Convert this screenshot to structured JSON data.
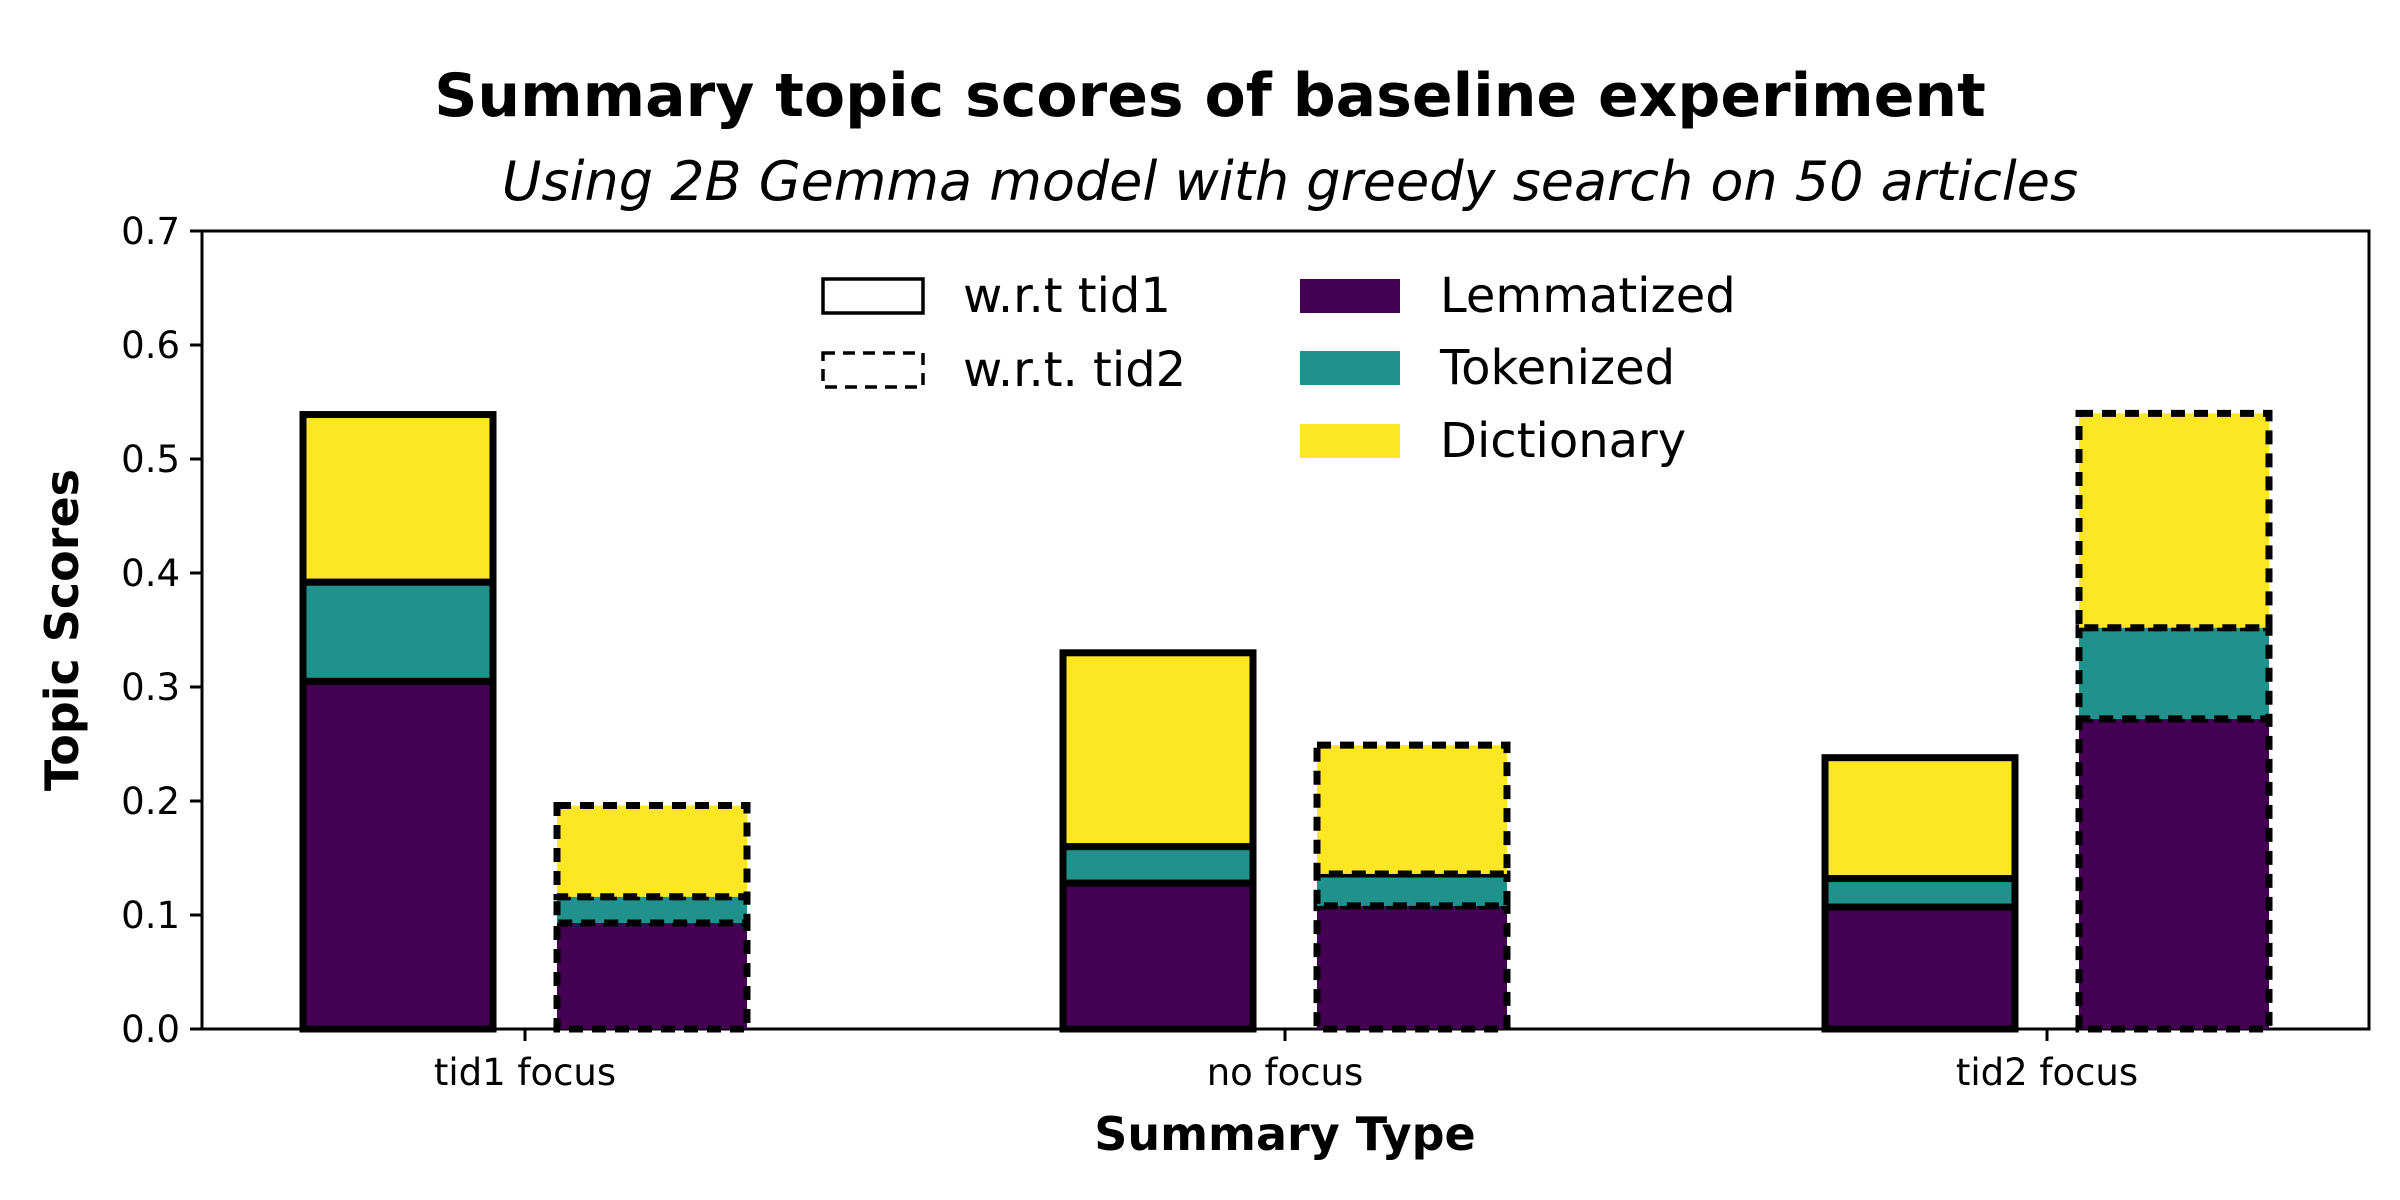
{
  "chart_data": {
    "type": "bar",
    "stacked": true,
    "title": "Summary topic scores of baseline experiment",
    "subtitle": "Using 2B Gemma model with greedy search on 50 articles",
    "xlabel": "Summary Type",
    "ylabel": "Topic Scores",
    "ylim": [
      0,
      0.7
    ],
    "yticks": [
      "0.0",
      "0.1",
      "0.2",
      "0.3",
      "0.4",
      "0.5",
      "0.6",
      "0.7"
    ],
    "categories": [
      "tid1 focus",
      "no focus",
      "tid2 focus"
    ],
    "groups": [
      {
        "name": "w.r.t tid1",
        "style": "solid"
      },
      {
        "name": "w.r.t. tid2",
        "style": "dashed"
      }
    ],
    "series": [
      {
        "name": "Lemmatized",
        "color": "#440154",
        "values": {
          "w.r.t tid1": [
            0.305,
            0.128,
            0.107
          ],
          "w.r.t. tid2": [
            0.093,
            0.108,
            0.272
          ]
        }
      },
      {
        "name": "Tokenized",
        "color": "#21918c",
        "values": {
          "w.r.t tid1": [
            0.087,
            0.032,
            0.025
          ],
          "w.r.t. tid2": [
            0.023,
            0.028,
            0.08
          ]
        }
      },
      {
        "name": "Dictionary",
        "color": "#fde725",
        "values": {
          "w.r.t tid1": [
            0.147,
            0.17,
            0.106
          ],
          "w.r.t. tid2": [
            0.08,
            0.113,
            0.188
          ]
        }
      }
    ],
    "legend_position": "top-center",
    "grid": false
  }
}
